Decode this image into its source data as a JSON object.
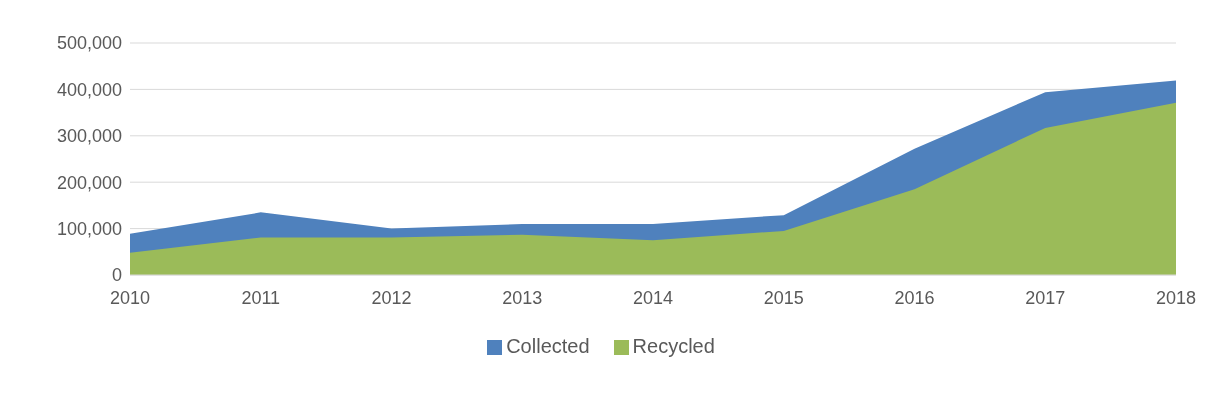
{
  "chart_data": {
    "type": "area",
    "x": [
      2010,
      2011,
      2012,
      2013,
      2014,
      2015,
      2016,
      2017,
      2018
    ],
    "series": [
      {
        "name": "Collected",
        "color": "#4f81bd",
        "values": [
          89000,
          135000,
          100000,
          110000,
          110000,
          129000,
          272000,
          394000,
          419000
        ]
      },
      {
        "name": "Recycled",
        "color": "#9bbb59",
        "values": [
          48000,
          81000,
          81000,
          87000,
          75000,
          95000,
          185000,
          317000,
          371000
        ]
      }
    ],
    "xlim": [
      2010,
      2018
    ],
    "xticks": [
      2010,
      2011,
      2012,
      2013,
      2014,
      2015,
      2016,
      2017,
      2018
    ],
    "ylim": [
      0,
      500000
    ],
    "yticks": [
      0,
      {
        "value": 100000,
        "label": "100,000"
      },
      {
        "value": 200000,
        "label": "200,000"
      },
      {
        "value": 300000,
        "label": "300,000"
      },
      {
        "value": 400000,
        "label": "400,000"
      },
      {
        "value": 500000,
        "label": "500,000"
      }
    ],
    "grid": "y",
    "legend": "bottom"
  }
}
